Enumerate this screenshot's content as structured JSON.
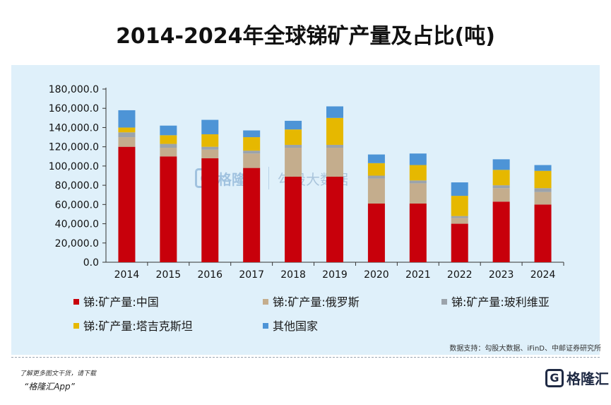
{
  "title": "2014-2024年全球锑矿产量及占比(吨)",
  "source": "数据支持：勾股大数据、iFinD、中邮证券研究所",
  "footer": {
    "note": "了解更多图文干货，请下载",
    "app": "“格隆汇App”",
    "logo_text": "格隆汇"
  },
  "watermark": {
    "brand": "格隆汇",
    "text": "勾股大数据"
  },
  "chart_data": {
    "type": "bar",
    "stacked": true,
    "categories": [
      "2014",
      "2015",
      "2016",
      "2017",
      "2018",
      "2019",
      "2020",
      "2021",
      "2022",
      "2023",
      "2024"
    ],
    "ylim": [
      0,
      180000
    ],
    "yticks": [
      "0.0",
      "20,000.0",
      "40,000.0",
      "60,000.0",
      "80,000.0",
      "100,000.0",
      "120,000.0",
      "140,000.0",
      "160,000.0",
      "180,000.0"
    ],
    "ytick_values": [
      0,
      20000,
      40000,
      60000,
      80000,
      100000,
      120000,
      140000,
      160000,
      180000
    ],
    "grid": false,
    "legend_position": "bottom",
    "series": [
      {
        "name": "锑:矿产量:中国",
        "color": "#c8000b",
        "values": [
          120000,
          110000,
          108000,
          98000,
          89000,
          89000,
          61000,
          61000,
          40000,
          63000,
          60000
        ]
      },
      {
        "name": "锑:矿产量:俄罗斯",
        "color": "#c4ad8d",
        "values": [
          10000,
          9000,
          9000,
          15000,
          30000,
          30000,
          26000,
          21000,
          6000,
          14000,
          13000
        ]
      },
      {
        "name": "锑:矿产量:玻利维亚",
        "color": "#9ba3ab",
        "values": [
          5000,
          4000,
          3000,
          3000,
          3000,
          3000,
          3000,
          3000,
          2000,
          3000,
          4000
        ]
      },
      {
        "name": "锑:矿产量:塔吉克斯坦",
        "color": "#e6b800",
        "values": [
          5000,
          9000,
          13000,
          14000,
          16000,
          28000,
          13000,
          16000,
          21000,
          16000,
          18000
        ]
      },
      {
        "name": "其他国家",
        "color": "#4d94d6",
        "values": [
          18000,
          10000,
          15000,
          7000,
          9000,
          12000,
          9000,
          12000,
          14000,
          11000,
          6000
        ]
      }
    ]
  }
}
